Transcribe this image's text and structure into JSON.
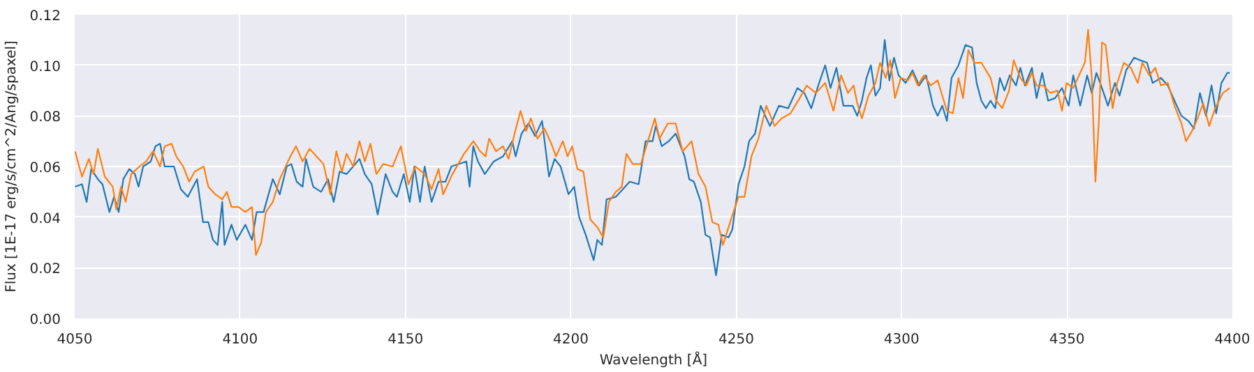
{
  "chart_data": {
    "type": "line",
    "xlabel": "Wavelength [Å]",
    "ylabel": "Flux [1E-17 erg/s/cm^2/Ang/spaxel]",
    "xlim": [
      4050,
      4400
    ],
    "ylim": [
      0,
      0.12
    ],
    "xticks": [
      4050,
      4100,
      4150,
      4200,
      4250,
      4300,
      4350,
      4400
    ],
    "yticks": [
      {
        "value": 0,
        "label": "0.00"
      },
      {
        "value": 0.02,
        "label": "0.02"
      },
      {
        "value": 0.04,
        "label": "0.04"
      },
      {
        "value": 0.06,
        "label": "0.06"
      },
      {
        "value": 0.08,
        "label": "0.08"
      },
      {
        "value": 0.1,
        "label": "0.10"
      },
      {
        "value": 0.12,
        "label": "0.12"
      }
    ],
    "grid": true,
    "line_style": "solid",
    "marker": "none",
    "series": [
      {
        "color": "#1f77b4",
        "x": [
          4050.1,
          4052.2,
          4053.6,
          4055,
          4057,
          4058.4,
          4060.5,
          4061.9,
          4063.3,
          4064.7,
          4066.5,
          4068.2,
          4069.3,
          4070.7,
          4073,
          4074.4,
          4075.8,
          4077.2,
          4080,
          4082.1,
          4084.2,
          4087,
          4088.8,
          4090.4,
          4091.8,
          4093.2,
          4094.6,
          4095.3,
          4097.4,
          4099,
          4101.6,
          4103.6,
          4105,
          4107.1,
          4109.9,
          4112,
          4114.1,
          4115.5,
          4117.1,
          4118.9,
          4119.9,
          4122.1,
          4124.5,
          4126.6,
          4128.3,
          4130.1,
          4132.2,
          4134.2,
          4136.1,
          4137.7,
          4139.8,
          4141.6,
          4144,
          4146.1,
          4147.4,
          4149.5,
          4151.3,
          4152.7,
          4154.4,
          4155.8,
          4157.9,
          4160,
          4162.1,
          4163.9,
          4168.4,
          4169.4,
          4170.5,
          4171.9,
          4174,
          4176.7,
          4179.5,
          4182.3,
          4183.3,
          4185.1,
          4187.2,
          4189.2,
          4191.3,
          4193.4,
          4195.1,
          4196.9,
          4199.3,
          4201,
          4202.5,
          4204.5,
          4206.9,
          4208,
          4209.4,
          4210.8,
          4213.6,
          4215.7,
          4217.8,
          4220.5,
          4222.6,
          4224.7,
          4225.7,
          4227.5,
          4229.6,
          4231.7,
          4234.4,
          4235.8,
          4237.2,
          4239.3,
          4240.7,
          4242.1,
          4243.9,
          4245.6,
          4247.7,
          4248.8,
          4250.7,
          4252.5,
          4253.9,
          4255.7,
          4257.4,
          4260.2,
          4262.9,
          4265.7,
          4268.5,
          4270.6,
          4272.7,
          4274.8,
          4276.9,
          4278.5,
          4280.3,
          4282.4,
          4285.2,
          4286.6,
          4288,
          4289.4,
          4290.7,
          4292.1,
          4293.5,
          4294.9,
          4296.3,
          4297.7,
          4299.1,
          4301.2,
          4303.3,
          4305.3,
          4307.4,
          4309.5,
          4310.9,
          4312.3,
          4313.7,
          4315.1,
          4317.2,
          4319.3,
          4321.3,
          4322.7,
          4324.1,
          4325.5,
          4326.9,
          4328.3,
          4329.7,
          4331.1,
          4332.7,
          4334.6,
          4335.9,
          4337.3,
          4339.4,
          4340.8,
          4342.5,
          4344.3,
          4346.4,
          4348.5,
          4350.5,
          4351.9,
          4354,
          4356.1,
          4357.5,
          4358.9,
          4360.3,
          4362.4,
          4364.5,
          4365.9,
          4367.9,
          4370.3,
          4372.1,
          4374.2,
          4375.9,
          4378.4,
          4380.5,
          4382.5,
          4384.6,
          4386.7,
          4388.4,
          4390.2,
          4392,
          4393.7,
          4395.1,
          4396.7,
          4398.5,
          4399.2
        ],
        "values": [
          0.052,
          0.053,
          0.046,
          0.059,
          0.055,
          0.053,
          0.042,
          0.048,
          0.042,
          0.055,
          0.059,
          0.057,
          0.052,
          0.06,
          0.062,
          0.068,
          0.069,
          0.06,
          0.06,
          0.051,
          0.048,
          0.055,
          0.038,
          0.038,
          0.031,
          0.029,
          0.046,
          0.029,
          0.037,
          0.031,
          0.037,
          0.031,
          0.042,
          0.042,
          0.055,
          0.049,
          0.06,
          0.061,
          0.054,
          0.052,
          0.063,
          0.052,
          0.05,
          0.055,
          0.046,
          0.058,
          0.057,
          0.06,
          0.063,
          0.057,
          0.053,
          0.041,
          0.057,
          0.05,
          0.048,
          0.057,
          0.046,
          0.06,
          0.046,
          0.06,
          0.046,
          0.054,
          0.054,
          0.06,
          0.062,
          0.052,
          0.068,
          0.062,
          0.057,
          0.062,
          0.064,
          0.07,
          0.064,
          0.073,
          0.077,
          0.072,
          0.078,
          0.056,
          0.063,
          0.06,
          0.049,
          0.052,
          0.04,
          0.033,
          0.023,
          0.031,
          0.029,
          0.047,
          0.048,
          0.051,
          0.054,
          0.053,
          0.07,
          0.07,
          0.076,
          0.068,
          0.07,
          0.073,
          0.064,
          0.055,
          0.054,
          0.046,
          0.033,
          0.032,
          0.017,
          0.033,
          0.032,
          0.035,
          0.053,
          0.06,
          0.07,
          0.073,
          0.084,
          0.076,
          0.084,
          0.083,
          0.091,
          0.089,
          0.083,
          0.092,
          0.1,
          0.091,
          0.099,
          0.084,
          0.084,
          0.08,
          0.086,
          0.095,
          0.1,
          0.088,
          0.091,
          0.11,
          0.094,
          0.103,
          0.096,
          0.093,
          0.098,
          0.092,
          0.096,
          0.084,
          0.08,
          0.084,
          0.078,
          0.095,
          0.1,
          0.108,
          0.107,
          0.093,
          0.086,
          0.083,
          0.086,
          0.083,
          0.095,
          0.09,
          0.096,
          0.092,
          0.099,
          0.092,
          0.099,
          0.087,
          0.097,
          0.086,
          0.087,
          0.091,
          0.084,
          0.096,
          0.084,
          0.096,
          0.089,
          0.097,
          0.092,
          0.084,
          0.093,
          0.088,
          0.098,
          0.103,
          0.102,
          0.101,
          0.093,
          0.095,
          0.092,
          0.086,
          0.08,
          0.078,
          0.075,
          0.089,
          0.08,
          0.092,
          0.081,
          0.093,
          0.097,
          0.097
        ]
      },
      {
        "color": "#ff7f0e",
        "x": [
          4050.1,
          4052.2,
          4054.3,
          4055.7,
          4057,
          4059.1,
          4061.5,
          4062.6,
          4064,
          4065.4,
          4067.1,
          4069.6,
          4071.6,
          4073.7,
          4075.8,
          4077.2,
          4079.3,
          4080.7,
          4082.8,
          4084.6,
          4086.3,
          4089,
          4090.4,
          4092.5,
          4094.6,
          4096,
          4097.4,
          4099.5,
          4101.6,
          4103.6,
          4104.8,
          4106.4,
          4107.8,
          4109.9,
          4112,
          4113.4,
          4115.2,
          4116.9,
          4118.9,
          4121,
          4123.1,
          4125.2,
          4127.3,
          4129.1,
          4130.8,
          4132.2,
          4134.2,
          4136.1,
          4137.7,
          4139.4,
          4141.2,
          4143.3,
          4146.1,
          4148.6,
          4150.9,
          4153,
          4155.8,
          4157.9,
          4160,
          4161.4,
          4164.2,
          4167.7,
          4170.5,
          4172.6,
          4174.2,
          4175.3,
          4177.4,
          4179.5,
          4181.2,
          4183,
          4184.8,
          4186.5,
          4187.9,
          4189.9,
          4192,
          4194.1,
          4195.5,
          4197.6,
          4199,
          4200.4,
          4202,
          4203.8,
          4205.9,
          4208,
          4209.8,
          4211.5,
          4213.6,
          4215.4,
          4216.8,
          4218.7,
          4221.2,
          4223.3,
          4225.4,
          4226.8,
          4229.3,
          4231.7,
          4233.8,
          4236.5,
          4238.6,
          4240.7,
          4242.8,
          4244.6,
          4246,
          4248.4,
          4250.7,
          4252.5,
          4254.6,
          4256.7,
          4259.1,
          4261.6,
          4263.7,
          4266.4,
          4269.2,
          4271.3,
          4274.1,
          4276.9,
          4279.4,
          4281.7,
          4283.8,
          4285.5,
          4286.6,
          4288,
          4290,
          4292.1,
          4293.5,
          4295.2,
          4296.6,
          4298,
          4299.8,
          4301.9,
          4303.3,
          4304.9,
          4306.7,
          4308.8,
          4310.9,
          4312.3,
          4313.7,
          4315.5,
          4317.2,
          4318.6,
          4320.2,
          4322,
          4324.1,
          4326.9,
          4328.6,
          4330.4,
          4332.5,
          4333.9,
          4335.9,
          4337.7,
          4339.4,
          4340.8,
          4342.9,
          4345,
          4347.1,
          4348.5,
          4349.9,
          4351.9,
          4354,
          4355.4,
          4356.4,
          4357.5,
          4358.6,
          4359.6,
          4360.6,
          4361.7,
          4363.8,
          4365.2,
          4367.2,
          4369.3,
          4371.4,
          4372.8,
          4374.9,
          4376.7,
          4378.4,
          4380.5,
          4382.5,
          4384.6,
          4386,
          4387.8,
          4389.5,
          4391.2,
          4393,
          4394.8,
          4397.1,
          4399.2
        ],
        "values": [
          0.066,
          0.056,
          0.063,
          0.057,
          0.067,
          0.056,
          0.052,
          0.043,
          0.052,
          0.046,
          0.057,
          0.06,
          0.062,
          0.066,
          0.06,
          0.068,
          0.069,
          0.064,
          0.06,
          0.054,
          0.058,
          0.06,
          0.052,
          0.049,
          0.047,
          0.05,
          0.044,
          0.044,
          0.042,
          0.044,
          0.025,
          0.03,
          0.042,
          0.046,
          0.055,
          0.059,
          0.064,
          0.068,
          0.062,
          0.067,
          0.064,
          0.061,
          0.049,
          0.066,
          0.058,
          0.065,
          0.06,
          0.07,
          0.062,
          0.069,
          0.057,
          0.061,
          0.06,
          0.068,
          0.053,
          0.06,
          0.057,
          0.051,
          0.059,
          0.049,
          0.057,
          0.065,
          0.07,
          0.066,
          0.064,
          0.071,
          0.066,
          0.068,
          0.063,
          0.073,
          0.082,
          0.074,
          0.079,
          0.071,
          0.075,
          0.069,
          0.064,
          0.07,
          0.064,
          0.068,
          0.059,
          0.058,
          0.039,
          0.036,
          0.032,
          0.046,
          0.05,
          0.052,
          0.065,
          0.061,
          0.061,
          0.07,
          0.079,
          0.071,
          0.077,
          0.077,
          0.066,
          0.07,
          0.057,
          0.052,
          0.038,
          0.037,
          0.029,
          0.039,
          0.048,
          0.048,
          0.064,
          0.071,
          0.084,
          0.076,
          0.079,
          0.081,
          0.087,
          0.092,
          0.089,
          0.093,
          0.082,
          0.096,
          0.089,
          0.092,
          0.085,
          0.079,
          0.088,
          0.093,
          0.101,
          0.095,
          0.102,
          0.087,
          0.095,
          0.094,
          0.097,
          0.092,
          0.096,
          0.092,
          0.094,
          0.088,
          0.082,
          0.081,
          0.095,
          0.087,
          0.106,
          0.101,
          0.101,
          0.095,
          0.086,
          0.083,
          0.09,
          0.102,
          0.095,
          0.092,
          0.097,
          0.092,
          0.092,
          0.089,
          0.09,
          0.082,
          0.093,
          0.091,
          0.097,
          0.101,
          0.114,
          0.095,
          0.054,
          0.077,
          0.109,
          0.108,
          0.083,
          0.093,
          0.101,
          0.099,
          0.093,
          0.101,
          0.096,
          0.099,
          0.092,
          0.093,
          0.084,
          0.077,
          0.07,
          0.074,
          0.079,
          0.085,
          0.076,
          0.083,
          0.089,
          0.091
        ]
      }
    ]
  }
}
